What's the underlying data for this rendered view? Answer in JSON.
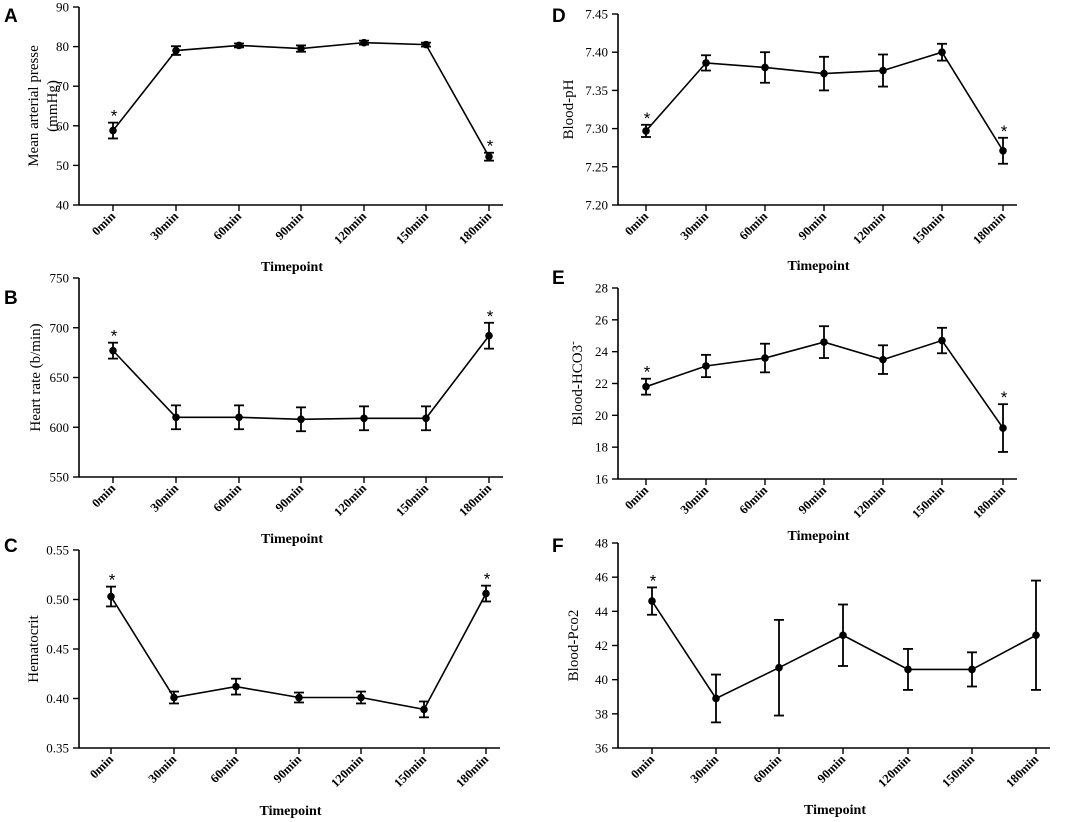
{
  "chart_data": [
    {
      "id": "A",
      "type": "line",
      "panel_label": "A",
      "categories": [
        "0min",
        "30min",
        "60min",
        "90min",
        "120min",
        "150min",
        "180min"
      ],
      "values": [
        58.8,
        79.0,
        80.3,
        79.5,
        81.0,
        80.5,
        52.2
      ],
      "errors": [
        2.0,
        1.1,
        0.5,
        0.8,
        0.5,
        0.5,
        1.0
      ],
      "significant": [
        true,
        false,
        false,
        false,
        false,
        false,
        true
      ],
      "significance_marker": "*",
      "ylabel_lines": [
        "Mean arterial presse",
        "(mmHg)"
      ],
      "xlabel": "Timepoint",
      "ylim": [
        40,
        90
      ],
      "yticks": [
        "40",
        "50",
        "60",
        "70",
        "80",
        "90"
      ]
    },
    {
      "id": "B",
      "type": "line",
      "panel_label": "B",
      "categories": [
        "0min",
        "30min",
        "60min",
        "90min",
        "120min",
        "150min",
        "180min"
      ],
      "values": [
        677,
        610,
        610,
        608,
        609,
        609,
        692
      ],
      "errors": [
        8,
        12,
        12,
        12,
        12,
        12,
        13
      ],
      "significant": [
        true,
        false,
        false,
        false,
        false,
        false,
        true
      ],
      "significance_marker": "*",
      "ylabel_lines": [
        "Heart rate (b/min)"
      ],
      "xlabel": "Timepoint",
      "ylim": [
        550,
        750
      ],
      "yticks": [
        "550",
        "600",
        "650",
        "700",
        "750"
      ]
    },
    {
      "id": "C",
      "type": "line",
      "panel_label": "C",
      "categories": [
        "0min",
        "30min",
        "60min",
        "90min",
        "120min",
        "150min",
        "180min"
      ],
      "values": [
        0.503,
        0.401,
        0.412,
        0.401,
        0.401,
        0.389,
        0.506
      ],
      "errors": [
        0.01,
        0.006,
        0.008,
        0.005,
        0.006,
        0.008,
        0.008
      ],
      "significant": [
        true,
        false,
        false,
        false,
        false,
        false,
        true
      ],
      "significance_marker": "*",
      "ylabel_lines": [
        "Hematocrit"
      ],
      "xlabel": "Timepoint",
      "ylim": [
        0.35,
        0.55
      ],
      "yticks": [
        "0.35",
        "0.40",
        "0.45",
        "0.50",
        "0.55"
      ]
    },
    {
      "id": "D",
      "type": "line",
      "panel_label": "D",
      "categories": [
        "0min",
        "30min",
        "60min",
        "90min",
        "120min",
        "150min",
        "180min"
      ],
      "values": [
        7.297,
        7.386,
        7.38,
        7.372,
        7.376,
        7.4,
        7.271
      ],
      "errors": [
        0.008,
        0.01,
        0.02,
        0.022,
        0.021,
        0.011,
        0.017
      ],
      "significant": [
        true,
        false,
        false,
        false,
        false,
        false,
        true
      ],
      "significance_marker": "*",
      "ylabel_lines": [
        "Blood-pH"
      ],
      "xlabel": "Timepoint",
      "ylim": [
        7.2,
        7.45
      ],
      "yticks": [
        "7.20",
        "7.25",
        "7.30",
        "7.35",
        "7.40",
        "7.45"
      ]
    },
    {
      "id": "E",
      "type": "line",
      "panel_label": "E",
      "categories": [
        "0min",
        "30min",
        "60min",
        "90min",
        "120min",
        "150min",
        "180min"
      ],
      "values": [
        21.8,
        23.1,
        23.6,
        24.6,
        23.5,
        24.7,
        19.2
      ],
      "errors": [
        0.5,
        0.7,
        0.9,
        1.0,
        0.9,
        0.8,
        1.5
      ],
      "significant": [
        true,
        false,
        false,
        false,
        false,
        false,
        true
      ],
      "significance_marker": "*",
      "ylabel_lines": [
        "Blood-HCO3"
      ],
      "ylabel_superscript": "-",
      "xlabel": "Timepoint",
      "ylim": [
        16,
        28
      ],
      "yticks": [
        "16",
        "18",
        "20",
        "22",
        "24",
        "26",
        "28"
      ]
    },
    {
      "id": "F",
      "type": "line",
      "panel_label": "F",
      "categories": [
        "0min",
        "30min",
        "60min",
        "90min",
        "120min",
        "150min",
        "180min"
      ],
      "values": [
        44.6,
        38.9,
        40.7,
        42.6,
        40.6,
        40.6,
        42.6
      ],
      "errors": [
        0.8,
        1.4,
        2.8,
        1.8,
        1.2,
        1.0,
        3.2
      ],
      "significant": [
        true,
        false,
        false,
        false,
        false,
        false,
        false
      ],
      "significance_marker": "*",
      "ylabel_lines": [
        "Blood-Pco2"
      ],
      "xlabel": "Timepoint",
      "ylim": [
        36,
        48
      ],
      "yticks": [
        "36",
        "38",
        "40",
        "42",
        "44",
        "46",
        "48"
      ]
    }
  ]
}
